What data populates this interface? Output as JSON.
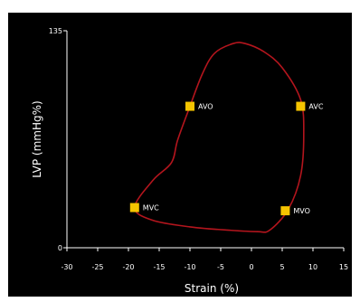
{
  "chart_data": {
    "type": "line",
    "xlabel": "Strain (%)",
    "ylabel": "LVP (mmHg%)",
    "xlim": [
      -30,
      15
    ],
    "ylim": [
      0,
      135
    ],
    "x_ticks": [
      "-30",
      "-25",
      "-20",
      "-15",
      "-10",
      "-5",
      "0",
      "5",
      "10",
      "15"
    ],
    "y_ticks": [
      "0",
      "135"
    ],
    "grid": false,
    "background": "#000000",
    "series": [
      {
        "color": "#b3151d",
        "closed": true,
        "x": [
          -19,
          -16,
          -13,
          -12,
          -10,
          -8,
          -6,
          -3,
          -1,
          2,
          5,
          8,
          8.5,
          8,
          6,
          3,
          1,
          -4,
          -10,
          -16,
          -19
        ],
        "y": [
          25,
          42,
          53,
          67,
          88,
          108,
          121,
          127,
          127,
          122,
          112,
          92,
          70,
          45,
          24,
          11,
          10,
          11,
          13,
          17,
          25
        ]
      }
    ],
    "events": [
      {
        "label": "MVC",
        "x": -19,
        "y": 25,
        "color": "#f5c400"
      },
      {
        "label": "AVO",
        "x": -10,
        "y": 88,
        "color": "#f5c400"
      },
      {
        "label": "AVC",
        "x": 8,
        "y": 88,
        "color": "#f5c400"
      },
      {
        "label": "MVO",
        "x": 5.5,
        "y": 23,
        "color": "#f5c400"
      }
    ]
  }
}
